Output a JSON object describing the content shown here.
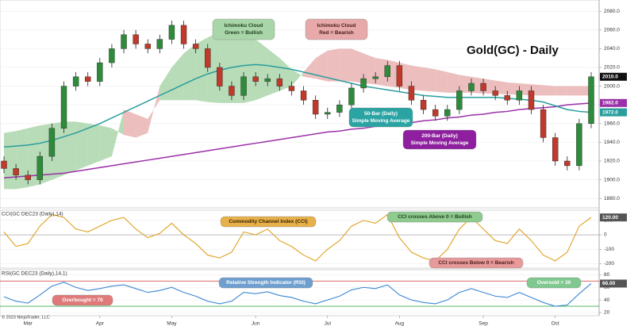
{
  "chart_data": {
    "type": "candlestick",
    "title": "Gold(GC) - Daily",
    "copyright": "© 2023 NinjaTrader, LLC",
    "categories": [
      null,
      null,
      "Mar",
      null,
      null,
      null,
      null,
      null,
      "Apr",
      null,
      null,
      null,
      null,
      null,
      "May",
      null,
      null,
      null,
      null,
      null,
      null,
      "Jun",
      null,
      null,
      null,
      null,
      null,
      "Jul",
      null,
      null,
      null,
      null,
      null,
      "Aug",
      null,
      null,
      null,
      null,
      null,
      null,
      "Sep",
      null,
      null,
      null,
      null,
      null,
      "Oct",
      null,
      null,
      null
    ],
    "open": [
      1920,
      1912,
      1905,
      1900,
      1925,
      1955,
      2000,
      2010,
      2005,
      2025,
      2040,
      2055,
      2045,
      2040,
      2050,
      2065,
      2045,
      2040,
      2020,
      2000,
      1990,
      2010,
      2005,
      2008,
      2000,
      1995,
      1985,
      1970,
      1972,
      1980,
      1998,
      2008,
      2010,
      2022,
      2000,
      1985,
      1975,
      1968,
      1975,
      1995,
      2003,
      1995,
      1990,
      1985,
      1995,
      1975,
      1945,
      1920,
      1915,
      1960
    ],
    "high": [
      1925,
      1917,
      1910,
      1930,
      1960,
      2005,
      2015,
      2015,
      2030,
      2045,
      2060,
      2060,
      2050,
      2055,
      2070,
      2070,
      2050,
      2045,
      2025,
      2005,
      2015,
      2015,
      2013,
      2013,
      2005,
      2000,
      1990,
      1977,
      1985,
      2003,
      2013,
      2015,
      2027,
      2027,
      2005,
      1990,
      1980,
      1980,
      2000,
      2008,
      2008,
      2000,
      1995,
      2000,
      2000,
      1980,
      1950,
      1925,
      1965,
      2015
    ],
    "low": [
      1907,
      1900,
      1895,
      1895,
      1920,
      1950,
      1995,
      2000,
      2000,
      2020,
      2035,
      2040,
      2035,
      2035,
      2045,
      2040,
      2035,
      2015,
      1995,
      1985,
      1985,
      2000,
      2000,
      1995,
      1990,
      1980,
      1965,
      1965,
      1967,
      1975,
      1993,
      2003,
      2005,
      1995,
      1980,
      1970,
      1963,
      1963,
      1970,
      1990,
      1990,
      1985,
      1980,
      1980,
      1970,
      1940,
      1915,
      1910,
      1910,
      1955
    ],
    "close": [
      1912,
      1905,
      1900,
      1925,
      1955,
      2000,
      2010,
      2005,
      2025,
      2040,
      2055,
      2045,
      2040,
      2050,
      2065,
      2045,
      2040,
      2020,
      2000,
      1990,
      2010,
      2005,
      2008,
      2000,
      1995,
      1985,
      1970,
      1972,
      1980,
      1998,
      2008,
      2010,
      2022,
      2000,
      1985,
      1975,
      1968,
      1975,
      1995,
      2003,
      1995,
      1990,
      1985,
      1995,
      1975,
      1945,
      1920,
      1915,
      1960,
      2010
    ],
    "up_color": "#2e8b3a",
    "down_color": "#c0392b",
    "ylim": [
      1870,
      2092
    ],
    "yticks": [
      {
        "value": 1880,
        "label": "1880.0"
      },
      {
        "value": 1900,
        "label": "1900.0"
      },
      {
        "value": 1920,
        "label": "1920.0"
      },
      {
        "value": 1940,
        "label": "1940.0"
      },
      {
        "value": 1960,
        "label": "1960.0"
      },
      {
        "value": 1980,
        "label": "1980.0"
      },
      {
        "value": 2000,
        "label": "2000.0"
      },
      {
        "value": 2020,
        "label": "2020.0"
      },
      {
        "value": 2040,
        "label": "2040.0"
      },
      {
        "value": 2060,
        "label": "2060.0"
      },
      {
        "value": 2080,
        "label": "2080.0"
      }
    ],
    "ichimoku": {
      "span_a": [
        1950,
        1952,
        1955,
        1958,
        1960,
        1962,
        1962,
        1960,
        1958,
        1955,
        1948,
        1945,
        1950,
        2000,
        2020,
        2035,
        2045,
        2052,
        2058,
        2058,
        2055,
        2050,
        2040,
        2030,
        2018,
        2010,
        2008,
        2005,
        2005,
        2005,
        2003,
        2002,
        2000,
        1998,
        1996,
        1995,
        1994,
        1993,
        1993,
        1993,
        1992,
        1992,
        1991,
        1991,
        1990,
        1990,
        1990,
        1990,
        1990,
        1990
      ],
      "span_b": [
        1890,
        1890,
        1892,
        1895,
        1900,
        1905,
        1910,
        1915,
        1920,
        1925,
        1975,
        1970,
        1965,
        1985,
        1985,
        1985,
        1985,
        1983,
        1982,
        1982,
        1982,
        1985,
        1990,
        1995,
        2000,
        2015,
        2030,
        2038,
        2040,
        2040,
        2035,
        2030,
        2028,
        2025,
        2022,
        2020,
        2018,
        2015,
        2012,
        2010,
        2008,
        2006,
        2004,
        2003,
        2002,
        2001,
        2000,
        2000,
        2000,
        2000
      ],
      "bull_color": "#9fd09f",
      "bear_color": "#e6a8a8"
    },
    "sma50": {
      "color": "#2a9d9d",
      "values": [
        1935,
        1936,
        1937,
        1939,
        1942,
        1946,
        1950,
        1955,
        1960,
        1966,
        1972,
        1978,
        1984,
        1990,
        1996,
        2002,
        2008,
        2013,
        2017,
        2020,
        2022,
        2023,
        2022,
        2020,
        2018,
        2015,
        2012,
        2009,
        2006,
        2003,
        2000,
        1998,
        1996,
        1994,
        1992,
        1990,
        1989,
        1988,
        1988,
        1988,
        1988,
        1988,
        1987,
        1986,
        1985,
        1983,
        1979,
        1975,
        1973,
        1972
      ]
    },
    "sma200": {
      "color": "#9b30a8",
      "values": [
        1902,
        1903,
        1904,
        1905,
        1906,
        1907,
        1909,
        1911,
        1913,
        1915,
        1917,
        1919,
        1921,
        1923,
        1925,
        1927,
        1929,
        1931,
        1933,
        1935,
        1937,
        1939,
        1941,
        1943,
        1945,
        1947,
        1949,
        1951,
        1952,
        1954,
        1955,
        1957,
        1958,
        1960,
        1961,
        1963,
        1964,
        1966,
        1967,
        1969,
        1970,
        1972,
        1973,
        1975,
        1976,
        1977,
        1978,
        1980,
        1981,
        1982
      ]
    },
    "price_markers": [
      {
        "value": 2010,
        "label": "2010.0",
        "color": "#111111"
      },
      {
        "value": 1982,
        "label": "1982.0",
        "color": "#9b30a8"
      },
      {
        "value": 1972,
        "label": "1972.0",
        "color": "#2a9d9d"
      }
    ],
    "cci": {
      "title": "CCI(GC DEC23 (Daily),14)",
      "color": "#e0a020",
      "values": [
        20,
        -80,
        -60,
        60,
        140,
        120,
        40,
        20,
        60,
        100,
        120,
        40,
        -20,
        10,
        80,
        0,
        -60,
        -140,
        -160,
        -120,
        20,
        0,
        40,
        -40,
        -80,
        -140,
        -180,
        -100,
        -40,
        60,
        100,
        80,
        140,
        -20,
        -120,
        -160,
        -180,
        -100,
        40,
        120,
        40,
        -40,
        -60,
        40,
        -40,
        -140,
        -180,
        -120,
        60,
        120
      ],
      "ylim": [
        -230,
        170
      ],
      "yticks": [
        100,
        0,
        -100,
        -200
      ],
      "marker": {
        "value": 120,
        "label": "120.00",
        "color": "#555555"
      }
    },
    "rsi": {
      "title": "RSI(GC DEC23 (Daily),14,1)",
      "color": "#3a86d4",
      "values": [
        45,
        38,
        35,
        48,
        62,
        68,
        60,
        55,
        58,
        62,
        64,
        58,
        52,
        55,
        60,
        52,
        46,
        38,
        34,
        38,
        52,
        50,
        53,
        47,
        44,
        38,
        34,
        40,
        46,
        56,
        60,
        58,
        64,
        48,
        40,
        36,
        34,
        40,
        52,
        58,
        52,
        46,
        44,
        52,
        44,
        36,
        30,
        32,
        50,
        66
      ],
      "ylim": [
        15,
        88
      ],
      "yticks": [
        20,
        40,
        60,
        80
      ],
      "levels": [
        {
          "value": 70,
          "color": "#d9534f"
        },
        {
          "value": 30,
          "color": "#3fae4a"
        }
      ],
      "marker": {
        "value": 66,
        "label": "66.00",
        "color": "#555555"
      }
    },
    "annotations": [
      {
        "lines": [
          "Ichimoku Cloud",
          "Green = Bullish"
        ],
        "color": "#a9d6a9",
        "text_color": "#1f3d1f"
      },
      {
        "lines": [
          "Ichimoku Cloud",
          "Red = Bearish"
        ],
        "color": "#e7a9a9",
        "text_color": "#4a1c1c"
      },
      {
        "lines": [
          "50-Bar (Daily)",
          "Simple Moving Average"
        ],
        "color": "#2aa3a3",
        "text_color": "#ffffff"
      },
      {
        "lines": [
          "200-Bar (Daily)",
          "Simple Moving Average"
        ],
        "color": "#8e1f9e",
        "text_color": "#ffffff"
      },
      {
        "lines": [
          "Commodity Channel Index (CCI)"
        ],
        "color": "#e8b04a",
        "text_color": "#3a2600"
      },
      {
        "lines": [
          "CCI crosses Above 0 = Bullish"
        ],
        "color": "#8fca8f",
        "text_color": "#1f3d1f"
      },
      {
        "lines": [
          "CCI crosses Below 0 = Bearish"
        ],
        "color": "#e89a9a",
        "text_color": "#4a1c1c"
      },
      {
        "lines": [
          "Relative Strength Indicator (RSI)"
        ],
        "color": "#6f9fcf",
        "text_color": "#ffffff"
      },
      {
        "lines": [
          "Overbought = 70"
        ],
        "color": "#e07a7a",
        "text_color": "#ffffff"
      },
      {
        "lines": [
          "Oversold = 30"
        ],
        "color": "#7fc88f",
        "text_color": "#ffffff"
      }
    ]
  }
}
